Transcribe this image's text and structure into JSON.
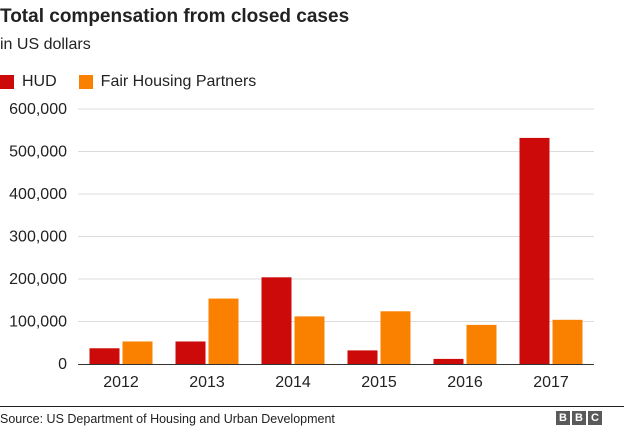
{
  "title": "Total compensation from closed cases",
  "subtitle": "in US dollars",
  "source": "Source: US Department of Housing and Urban Development",
  "logo": [
    "B",
    "B",
    "C"
  ],
  "colors": {
    "HUD": "#cc0a0a",
    "Fair Housing Partners": "#fa8100",
    "grid": "#dcdcdc",
    "axis": "#333333"
  },
  "chart_data": {
    "type": "bar",
    "categories": [
      "2012",
      "2013",
      "2014",
      "2015",
      "2016",
      "2017"
    ],
    "series": [
      {
        "name": "HUD",
        "values": [
          37000,
          53000,
          204000,
          32000,
          12000,
          532000
        ]
      },
      {
        "name": "Fair Housing Partners",
        "values": [
          53000,
          154000,
          112000,
          124000,
          92000,
          104000
        ]
      }
    ],
    "yticks": [
      0,
      100000,
      200000,
      300000,
      400000,
      500000,
      600000
    ],
    "ytick_labels": [
      "0",
      "100,000",
      "200,000",
      "300,000",
      "400,000",
      "500,000",
      "600,000"
    ],
    "ylim": [
      0,
      600000
    ],
    "grid": true,
    "legend": "top-left"
  }
}
